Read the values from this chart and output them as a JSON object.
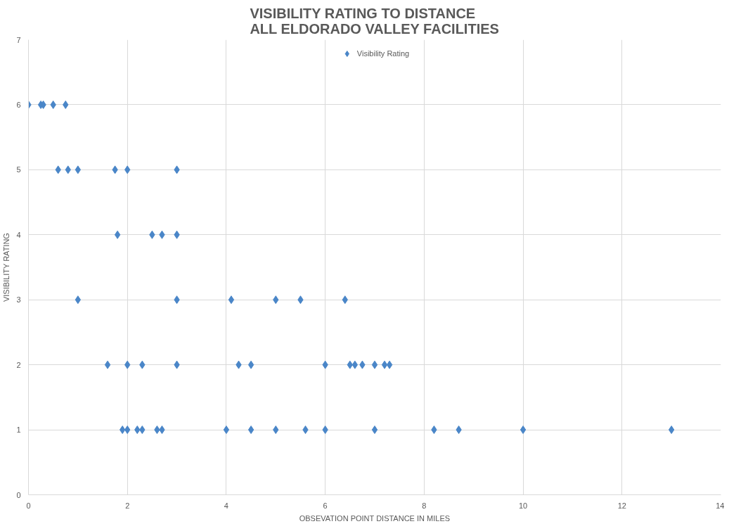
{
  "chart_data": {
    "type": "scatter",
    "title": "VISIBILITY RATING TO DISTANCE\nALL ELDORADO VALLEY FACILITIES",
    "xlabel": "OBSEVATION POINT DISTANCE IN MILES",
    "ylabel": "VISIBILITY RATING",
    "series": [
      {
        "name": "Visibility Rating",
        "color": "#4a86c8",
        "x": [
          0,
          0.25,
          0.3,
          0.5,
          0.75,
          0.6,
          0.8,
          1,
          1.75,
          2,
          3,
          1.8,
          2.5,
          2.7,
          3,
          1,
          3,
          4.1,
          5,
          5.5,
          6.4,
          1.6,
          2,
          2.3,
          3,
          4.25,
          4.5,
          6,
          6.5,
          6.6,
          6.75,
          7,
          7.2,
          7.3,
          1.9,
          2,
          2.2,
          2.3,
          2.6,
          2.7,
          4,
          4.5,
          5,
          5.6,
          6,
          7,
          8.2,
          8.7,
          10,
          13
        ],
        "values": [
          6,
          6,
          6,
          6,
          6,
          5,
          5,
          5,
          5,
          5,
          5,
          4,
          4,
          4,
          4,
          3,
          3,
          3,
          3,
          3,
          3,
          2,
          2,
          2,
          2,
          2,
          2,
          2,
          2,
          2,
          2,
          2,
          2,
          2,
          1,
          1,
          1,
          1,
          1,
          1,
          1,
          1,
          1,
          1,
          1,
          1,
          1,
          1,
          1,
          1
        ]
      }
    ],
    "xlim": [
      0,
      14
    ],
    "xticks": [
      0,
      2,
      4,
      6,
      8,
      10,
      12,
      14
    ],
    "ylim": [
      0,
      7
    ],
    "yticks": [
      0,
      1,
      2,
      3,
      4,
      5,
      6,
      7
    ],
    "grid": true,
    "legend": "top",
    "marker": "diamond"
  }
}
